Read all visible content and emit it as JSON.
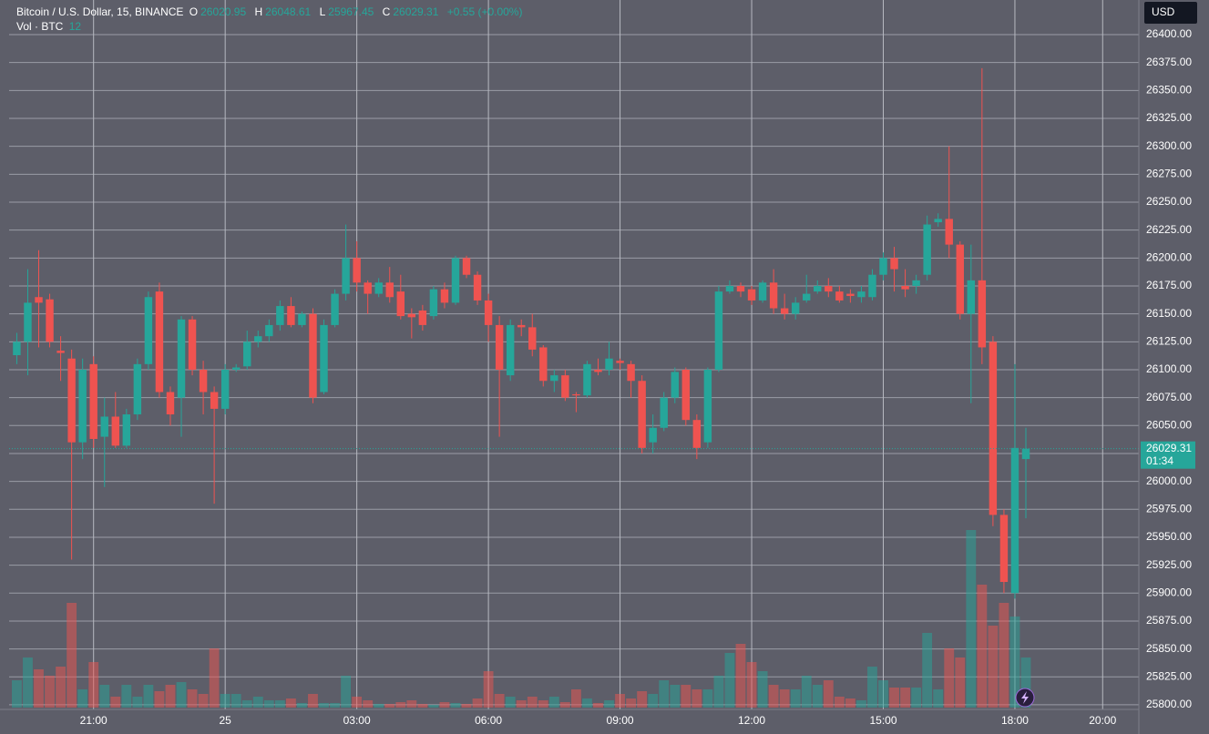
{
  "chart_data": {
    "type": "candlestick",
    "header": {
      "symbol": "Bitcoin / U.S. Dollar, 15, BINANCE",
      "open_label": "O",
      "open_value": "26020.95",
      "high_label": "H",
      "high_value": "26048.61",
      "low_label": "L",
      "low_value": "25967.45",
      "close_label": "C",
      "close_value": "26029.31",
      "change": "+0.55 (+0.00%)",
      "volume_label": "Vol · BTC",
      "volume_value": "12"
    },
    "currency": "USD",
    "last_price": 26029.31,
    "countdown": "01:34",
    "up_color": "#26a69a",
    "down_color": "#ef5350",
    "up_volume_color": "rgba(38,166,154,0.5)",
    "down_volume_color": "rgba(239,83,80,0.5)",
    "grid": true,
    "xlim": [
      -0.7,
      102.3
    ],
    "xticks": [
      {
        "value": 7,
        "label": "21:00"
      },
      {
        "value": 19,
        "label": "25"
      },
      {
        "value": 31,
        "label": "03:00"
      },
      {
        "value": 43,
        "label": "06:00"
      },
      {
        "value": 55,
        "label": "09:00"
      },
      {
        "value": 67,
        "label": "12:00"
      },
      {
        "value": 79,
        "label": "15:00"
      },
      {
        "value": 91,
        "label": "18:00"
      },
      {
        "value": 99,
        "label": "20:00"
      }
    ],
    "ylim": [
      25797.5,
      26431
    ],
    "yticks": [
      {
        "value": 25800,
        "label": "25800.00"
      },
      {
        "value": 25825,
        "label": "25825.00"
      },
      {
        "value": 25850,
        "label": "25850.00"
      },
      {
        "value": 25875,
        "label": "25875.00"
      },
      {
        "value": 25900,
        "label": "25900.00"
      },
      {
        "value": 25925,
        "label": "25925.00"
      },
      {
        "value": 25950,
        "label": "25950.00"
      },
      {
        "value": 25975,
        "label": "25975.00"
      },
      {
        "value": 26000,
        "label": "26000.00"
      },
      {
        "value": 26025,
        "label": "26025.00"
      },
      {
        "value": 26050,
        "label": "26050.00"
      },
      {
        "value": 26075,
        "label": "26075.00"
      },
      {
        "value": 26100,
        "label": "26100.00"
      },
      {
        "value": 26125,
        "label": "26125.00"
      },
      {
        "value": 26150,
        "label": "26150.00"
      },
      {
        "value": 26175,
        "label": "26175.00"
      },
      {
        "value": 26200,
        "label": "26200.00"
      },
      {
        "value": 26225,
        "label": "26225.00"
      },
      {
        "value": 26250,
        "label": "26250.00"
      },
      {
        "value": 26275,
        "label": "26275.00"
      },
      {
        "value": 26300,
        "label": "26300.00"
      },
      {
        "value": 26325,
        "label": "26325.00"
      },
      {
        "value": 26350,
        "label": "26350.00"
      },
      {
        "value": 26375,
        "label": "26375.00"
      },
      {
        "value": 26400,
        "label": "26400.00"
      }
    ],
    "open": [
      26113,
      26125,
      26165,
      26163,
      26117,
      26110,
      26035,
      26105,
      26040,
      26058,
      26032,
      26060,
      26105,
      26170,
      26080,
      26075,
      26145,
      26100,
      26080,
      26065,
      26100,
      26103,
      26125,
      26130,
      26140,
      26157,
      26140,
      26150,
      26080,
      26140,
      26168,
      26200,
      26178,
      26168,
      26178,
      26170,
      26150,
      26153,
      26148,
      26172,
      26160,
      26200,
      26185,
      26162,
      26140,
      26095,
      26140,
      26138,
      26120,
      26090,
      26095,
      26078,
      26077,
      26100,
      26100,
      26108,
      26105,
      26090,
      26035,
      26048,
      26075,
      26100,
      26055,
      26035,
      26100,
      26170,
      26175,
      26172,
      26162,
      26178,
      26155,
      26150,
      26162,
      26170,
      26175,
      26170,
      26168,
      26165,
      26165,
      26185,
      26200,
      26175,
      26175,
      26185,
      26232,
      26235,
      26212,
      26150,
      26180,
      26125,
      25970,
      25900,
      26020
    ],
    "high": [
      26133,
      26190,
      26207,
      26168,
      26130,
      26118,
      26110,
      26112,
      26075,
      26080,
      26065,
      26110,
      26170,
      26178,
      26085,
      26148,
      26148,
      26108,
      26085,
      26105,
      26105,
      26135,
      26135,
      26145,
      26162,
      26165,
      26152,
      26155,
      26145,
      26172,
      26230,
      26215,
      26180,
      26182,
      26192,
      26185,
      26155,
      26158,
      26175,
      26178,
      26202,
      26202,
      26188,
      26168,
      26148,
      26145,
      26145,
      26150,
      26122,
      26100,
      26100,
      26080,
      26108,
      26110,
      26125,
      26110,
      26108,
      26095,
      26060,
      26080,
      26102,
      26102,
      26060,
      26102,
      26175,
      26180,
      26178,
      26175,
      26180,
      26190,
      26168,
      26165,
      26185,
      26180,
      26182,
      26175,
      26172,
      26175,
      26190,
      26205,
      26210,
      26190,
      26185,
      26238,
      26240,
      26300,
      26215,
      26212,
      26370,
      26130,
      25975,
      26105,
      26048
    ],
    "low": [
      26105,
      26095,
      26120,
      26120,
      26090,
      25930,
      26020,
      26030,
      25995,
      26030,
      26030,
      26055,
      26100,
      26075,
      26050,
      26040,
      26095,
      26060,
      25980,
      26060,
      26098,
      26100,
      26120,
      26125,
      26135,
      26138,
      26138,
      26070,
      26078,
      26138,
      26162,
      26170,
      26150,
      26165,
      26160,
      26145,
      26128,
      26135,
      26145,
      26155,
      26158,
      26182,
      26158,
      26125,
      26040,
      26090,
      26130,
      26112,
      26085,
      26080,
      26072,
      26062,
      26075,
      26095,
      26095,
      26100,
      26075,
      26025,
      26025,
      26045,
      26070,
      26050,
      26020,
      26030,
      26098,
      26168,
      26165,
      26158,
      26160,
      26150,
      26145,
      26145,
      26160,
      26168,
      26165,
      26160,
      26160,
      26160,
      26162,
      26180,
      26170,
      26165,
      26168,
      26180,
      26228,
      26200,
      26145,
      26070,
      26105,
      25960,
      25900,
      25895,
      25967
    ],
    "close": [
      26125,
      26160,
      26160,
      26125,
      26115,
      26035,
      26100,
      26038,
      26058,
      26032,
      26060,
      26105,
      26165,
      26080,
      26060,
      26145,
      26100,
      26080,
      26065,
      26100,
      26102,
      26125,
      26130,
      26140,
      26157,
      26140,
      26150,
      26075,
      26140,
      26168,
      26200,
      26178,
      26168,
      26178,
      26165,
      26148,
      26147,
      26140,
      26172,
      26160,
      26200,
      26185,
      26162,
      26140,
      26100,
      26140,
      26138,
      26118,
      26090,
      26095,
      26075,
      26077,
      26105,
      26098,
      26110,
      26106,
      26090,
      26030,
      26048,
      26075,
      26098,
      26055,
      26030,
      26100,
      26170,
      26175,
      26170,
      26162,
      26178,
      26155,
      26150,
      26160,
      26168,
      26175,
      26170,
      26162,
      26166,
      26170,
      26185,
      26200,
      26190,
      26172,
      26180,
      26230,
      26235,
      26212,
      26150,
      26180,
      26120,
      25970,
      25910,
      26030,
      26029.31
    ],
    "volume": [
      30,
      55,
      42,
      35,
      45,
      115,
      20,
      50,
      25,
      12,
      25,
      12,
      25,
      18,
      25,
      28,
      20,
      15,
      65,
      15,
      15,
      8,
      12,
      8,
      8,
      10,
      5,
      15,
      5,
      5,
      35,
      12,
      8,
      4,
      4,
      6,
      8,
      4,
      3,
      6,
      5,
      4,
      10,
      40,
      15,
      12,
      8,
      12,
      8,
      12,
      6,
      20,
      10,
      5,
      8,
      15,
      10,
      18,
      15,
      30,
      25,
      25,
      20,
      20,
      35,
      60,
      70,
      50,
      40,
      25,
      20,
      20,
      35,
      25,
      30,
      12,
      10,
      8,
      45,
      30,
      22,
      22,
      22,
      82,
      20,
      65,
      55,
      195,
      135,
      90,
      115,
      100,
      55
    ]
  }
}
